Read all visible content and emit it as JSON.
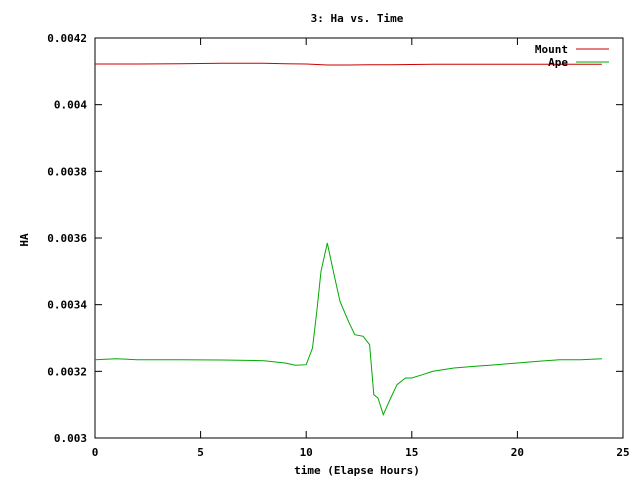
{
  "chart_data": {
    "type": "line",
    "title": "3: Ha vs. Time",
    "xlabel": "time (Elapse Hours)",
    "ylabel": "HA",
    "xlim": [
      0,
      25
    ],
    "ylim": [
      0.003,
      0.0042
    ],
    "xticks": [
      0,
      5,
      10,
      15,
      20,
      25
    ],
    "xtick_labels": [
      "0",
      "5",
      "10",
      "15",
      "20",
      "25"
    ],
    "yticks": [
      0.003,
      0.0032,
      0.0034,
      0.0036,
      0.0038,
      0.004,
      0.0042
    ],
    "ytick_labels": [
      "0.003",
      "0.0032",
      "0.0034",
      "0.0036",
      "0.0038",
      "0.004",
      "0.0042"
    ],
    "grid": false,
    "legend_position": "top-right",
    "series": [
      {
        "name": "Mount",
        "color": "#cc0000",
        "x": [
          0,
          2,
          4,
          6,
          8,
          9,
          10,
          11,
          12,
          13,
          14,
          16,
          18,
          20,
          22,
          24
        ],
        "y": [
          0.004122,
          0.004122,
          0.004123,
          0.004124,
          0.004124,
          0.004123,
          0.004122,
          0.004119,
          0.004119,
          0.00412,
          0.00412,
          0.004121,
          0.004121,
          0.004121,
          0.004121,
          0.004121
        ]
      },
      {
        "name": "Ape",
        "color": "#00aa00",
        "x": [
          0,
          1,
          2,
          4,
          6,
          8,
          9,
          9.5,
          10,
          10.3,
          10.5,
          10.7,
          11,
          11.3,
          11.6,
          12,
          12.3,
          12.7,
          13,
          13.2,
          13.4,
          13.65,
          14,
          14.3,
          14.7,
          15,
          15.5,
          16,
          17,
          18,
          19,
          20,
          21,
          22,
          23,
          24
        ],
        "y": [
          0.003235,
          0.003238,
          0.003235,
          0.003235,
          0.003234,
          0.003232,
          0.003225,
          0.003218,
          0.00322,
          0.00327,
          0.00338,
          0.0035,
          0.003585,
          0.003495,
          0.00341,
          0.00335,
          0.00331,
          0.003305,
          0.00328,
          0.00313,
          0.00312,
          0.00307,
          0.00312,
          0.00316,
          0.00318,
          0.00318,
          0.00319,
          0.0032,
          0.00321,
          0.003215,
          0.00322,
          0.003225,
          0.00323,
          0.003235,
          0.003235,
          0.003238
        ]
      }
    ]
  }
}
